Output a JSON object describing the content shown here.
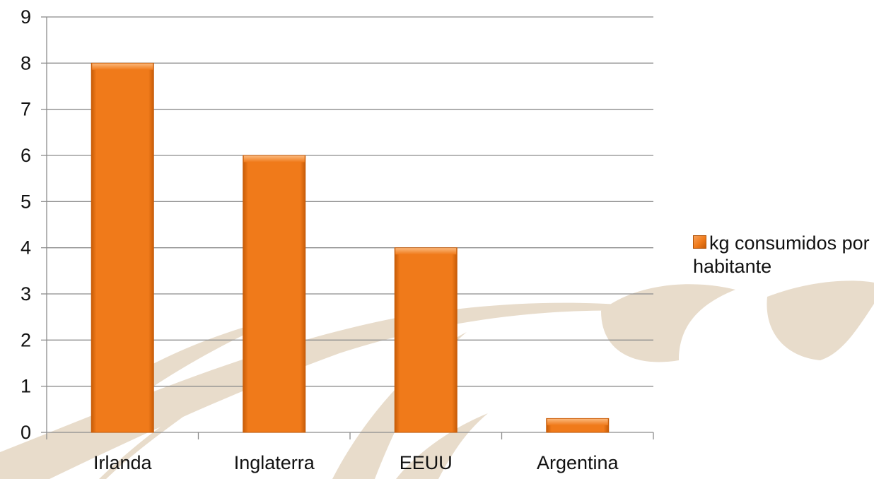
{
  "chart_data": {
    "type": "bar",
    "categories": [
      "Irlanda",
      "Inglaterra",
      "EEUU",
      "Argentina"
    ],
    "series": [
      {
        "name": "kg consumidos por habitante",
        "values": [
          8,
          6,
          4,
          0.3
        ]
      }
    ],
    "ylim": [
      0,
      9
    ],
    "yticks": [
      "0",
      "1",
      "2",
      "3",
      "4",
      "5",
      "6",
      "7",
      "8",
      "9"
    ],
    "grid": true,
    "legend_position": "right",
    "colors": {
      "bar": "#f07a1a",
      "bar_dark": "#c75c08",
      "bar_light": "#f9a862",
      "grid": "#8c8c8c",
      "watermark": "#e8dccb"
    }
  }
}
